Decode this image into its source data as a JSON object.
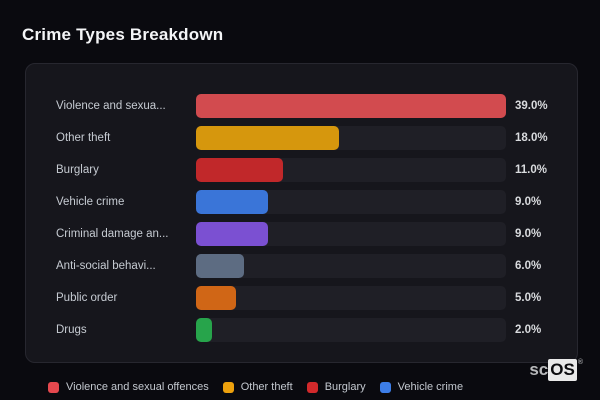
{
  "page": {
    "title": "Crime Types Breakdown",
    "background": "#0a0a0f",
    "card_background": "#16161c",
    "card_border": "#27272f",
    "track_color": "#1f1f26"
  },
  "chart_data": {
    "type": "bar",
    "orientation": "horizontal",
    "title": "Crime Types Breakdown",
    "categories": [
      "Violence and sexua...",
      "Other theft",
      "Burglary",
      "Vehicle crime",
      "Criminal damage an...",
      "Anti-social behavi...",
      "Public order",
      "Drugs"
    ],
    "values": [
      39.0,
      18.0,
      11.0,
      9.0,
      9.0,
      6.0,
      5.0,
      2.0
    ],
    "value_labels": [
      "39.0%",
      "18.0%",
      "11.0%",
      "9.0%",
      "9.0%",
      "6.0%",
      "5.0%",
      "2.0%"
    ],
    "bar_colors": [
      "#d24b4f",
      "#d6970d",
      "#c1282a",
      "#3a75d8",
      "#7b50d2",
      "#5d6c82",
      "#d06616",
      "#27a44b"
    ],
    "xlim": [
      0,
      39
    ],
    "grid": false,
    "legend_position": "bottom"
  },
  "legend": {
    "items": [
      {
        "label": "Violence and sexual offences",
        "color": "#e5484e"
      },
      {
        "label": "Other theft",
        "color": "#eda10d"
      },
      {
        "label": "Burglary",
        "color": "#d2292b"
      },
      {
        "label": "Vehicle crime",
        "color": "#3d7ee8"
      }
    ]
  },
  "logo": {
    "prefix": "sc",
    "suffix": "OS",
    "registered": "®"
  }
}
